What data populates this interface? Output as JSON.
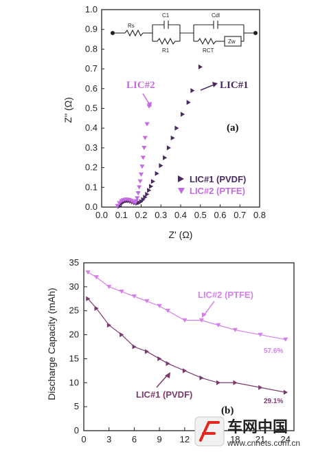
{
  "chart_data": [
    {
      "type": "scatter",
      "panel_label": "(a)",
      "xlabel": "Z' (Ω)",
      "ylabel": "Z'' (Ω)",
      "xlim": [
        0.0,
        0.8
      ],
      "ylim": [
        0.0,
        1.0
      ],
      "xticks": [
        "0.0",
        "0.1",
        "0.2",
        "0.3",
        "0.4",
        "0.5",
        "0.6",
        "0.7",
        "0.8"
      ],
      "yticks": [
        "0.0",
        "0.1",
        "0.2",
        "0.3",
        "0.4",
        "0.5",
        "0.6",
        "0.7",
        "0.8",
        "0.9",
        "1.0"
      ],
      "legend_position": "bottom-right",
      "circuit": [
        "Rs",
        "C1",
        "R1",
        "Cdl",
        "RCT",
        "Zw"
      ],
      "series": [
        {
          "name": "LIC#1 (PVDF)",
          "color": "#4a2a5e",
          "marker": "triangle-right",
          "callout": "LIC#1",
          "x": [
            0.09,
            0.1,
            0.11,
            0.12,
            0.13,
            0.14,
            0.15,
            0.16,
            0.17,
            0.18,
            0.19,
            0.2,
            0.21,
            0.22,
            0.23,
            0.24,
            0.25,
            0.26,
            0.28,
            0.3,
            0.32,
            0.34,
            0.36,
            0.38,
            0.41,
            0.44,
            0.46,
            0.5
          ],
          "y": [
            0.004,
            0.018,
            0.026,
            0.03,
            0.032,
            0.032,
            0.03,
            0.026,
            0.022,
            0.02,
            0.022,
            0.028,
            0.038,
            0.05,
            0.065,
            0.085,
            0.105,
            0.13,
            0.17,
            0.21,
            0.25,
            0.3,
            0.35,
            0.4,
            0.47,
            0.53,
            0.59,
            0.71
          ]
        },
        {
          "name": "LIC#2 (PTFE)",
          "color": "#c46be0",
          "marker": "triangle-down",
          "callout": "LIC#2",
          "x": [
            0.08,
            0.09,
            0.1,
            0.11,
            0.12,
            0.13,
            0.14,
            0.15,
            0.16,
            0.17,
            0.175,
            0.18,
            0.185,
            0.19,
            0.195,
            0.2,
            0.205,
            0.21,
            0.215,
            0.22,
            0.23,
            0.24
          ],
          "y": [
            0.005,
            0.02,
            0.03,
            0.035,
            0.038,
            0.038,
            0.036,
            0.032,
            0.026,
            0.022,
            0.03,
            0.045,
            0.07,
            0.1,
            0.13,
            0.165,
            0.205,
            0.25,
            0.3,
            0.35,
            0.42,
            0.51
          ]
        }
      ]
    },
    {
      "type": "line",
      "panel_label": "(b)",
      "ylabel": "Discharge Capacity (mAh)",
      "xlim": [
        0,
        25
      ],
      "ylim": [
        0,
        35
      ],
      "xticks": [
        "0",
        "3",
        "6",
        "9",
        "12",
        "15",
        "18",
        "21",
        "24"
      ],
      "yticks": [
        "0",
        "5",
        "10",
        "15",
        "20",
        "25",
        "30",
        "35"
      ],
      "series": [
        {
          "name": "LIC#2 (PTFE)",
          "color": "#d580e8",
          "marker": "triangle-down",
          "end_label": "57.6%",
          "x": [
            0.5,
            1.5,
            3,
            4.5,
            6,
            7.5,
            9,
            10,
            12,
            14,
            16,
            18,
            21,
            24
          ],
          "y": [
            33,
            32,
            30,
            29,
            28,
            27,
            26,
            25,
            23,
            23,
            22,
            21,
            20,
            19
          ]
        },
        {
          "name": "LIC#1 (PVDF)",
          "color": "#7a3a6e",
          "marker": "triangle-right",
          "end_label": "29.1%",
          "x": [
            0.5,
            1.5,
            3,
            4.5,
            6,
            7.5,
            9,
            10,
            12,
            14,
            16,
            18,
            21,
            24
          ],
          "y": [
            27.5,
            25.5,
            22,
            20,
            17.5,
            16.5,
            15,
            14,
            12.5,
            11,
            10,
            10,
            9,
            8
          ]
        }
      ]
    }
  ],
  "watermark": {
    "text": "车网中国",
    "url": "www.cnnets.com.cn"
  }
}
